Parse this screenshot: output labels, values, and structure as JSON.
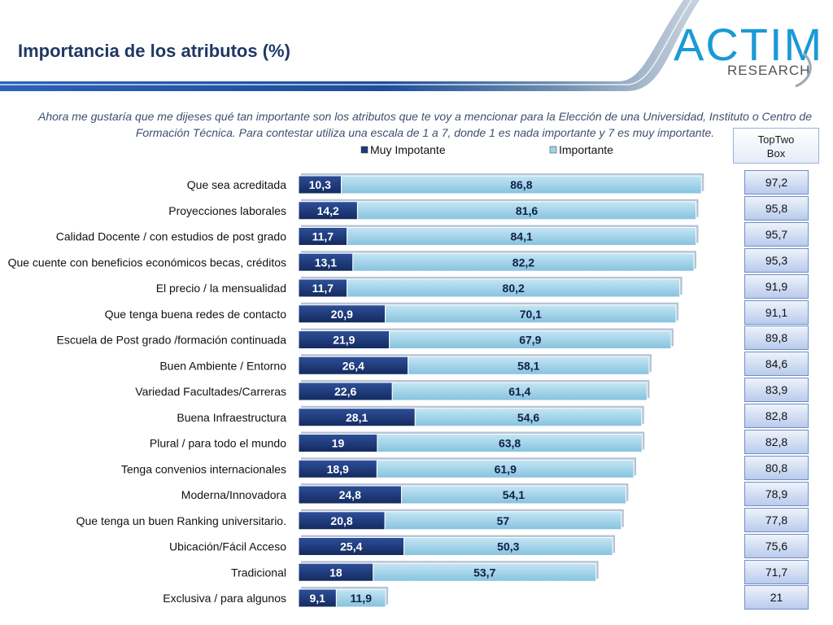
{
  "header": {
    "title": "Importancia de los atributos (%)",
    "logo_text": "ACTIM",
    "logo_subtext": "RESEARCH",
    "accent_color": "#1f3864"
  },
  "intro_text": "Ahora me gustaría que me dijeses qué tan importante son los atributos que te voy a mencionar para la Elección de una Universidad, Instituto o Centro de Formación Técnica. Para contestar utiliza una escala de 1 a 7, donde 1 es nada importante y 7 es muy importante.",
  "top_two_box": {
    "header_line1": "TopTwo",
    "header_line2": "Box",
    "values": [
      "97,2",
      "95,8",
      "95,7",
      "95,3",
      "91,9",
      "91,1",
      "89,8",
      "84,6",
      "83,9",
      "82,8",
      "82,8",
      "80,8",
      "78,9",
      "77,8",
      "75,6",
      "71,7",
      "21"
    ]
  },
  "chart_data": {
    "type": "bar",
    "orientation": "horizontal",
    "stacked": true,
    "categories": [
      "Que sea acreditada",
      "Proyecciones laborales",
      "Calidad Docente / con estudios de post grado",
      "Que cuente con beneficios económicos becas, créditos",
      "El precio / la mensualidad",
      "Que tenga buena redes de contacto",
      "Escuela de Post grado /formación continuada",
      "Buen Ambiente / Entorno",
      "Variedad Facultades/Carreras",
      "Buena Infraestructura",
      "Plural / para todo el mundo",
      "Tenga convenios internacionales",
      "Moderna/Innovadora",
      "Que tenga un buen Ranking universitario.",
      "Ubicación/Fácil Acceso",
      "Tradicional",
      "Exclusiva / para algunos"
    ],
    "series": [
      {
        "name": "Muy Impotante",
        "color": "#1f3a7a",
        "values": [
          10.3,
          14.2,
          11.7,
          13.1,
          11.7,
          20.9,
          21.9,
          26.4,
          22.6,
          28.1,
          19,
          18.9,
          24.8,
          20.8,
          25.4,
          18,
          9.1
        ],
        "labels": [
          "10,3",
          "14,2",
          "11,7",
          "13,1",
          "11,7",
          "20,9",
          "21,9",
          "26,4",
          "22,6",
          "28,1",
          "19",
          "18,9",
          "24,8",
          "20,8",
          "25,4",
          "18",
          "9,1"
        ]
      },
      {
        "name": "Importante",
        "color": "#9fd3ea",
        "values": [
          86.8,
          81.6,
          84.1,
          82.2,
          80.2,
          70.1,
          67.9,
          58.1,
          61.4,
          54.6,
          63.8,
          61.9,
          54.1,
          57,
          50.3,
          53.7,
          11.9
        ],
        "labels": [
          "86,8",
          "81,6",
          "84,1",
          "82,2",
          "80,2",
          "70,1",
          "67,9",
          "58,1",
          "61,4",
          "54,6",
          "63,8",
          "61,9",
          "54,1",
          "57",
          "50,3",
          "53,7",
          "11,9"
        ]
      }
    ],
    "legend_position": "top",
    "grid": false
  }
}
